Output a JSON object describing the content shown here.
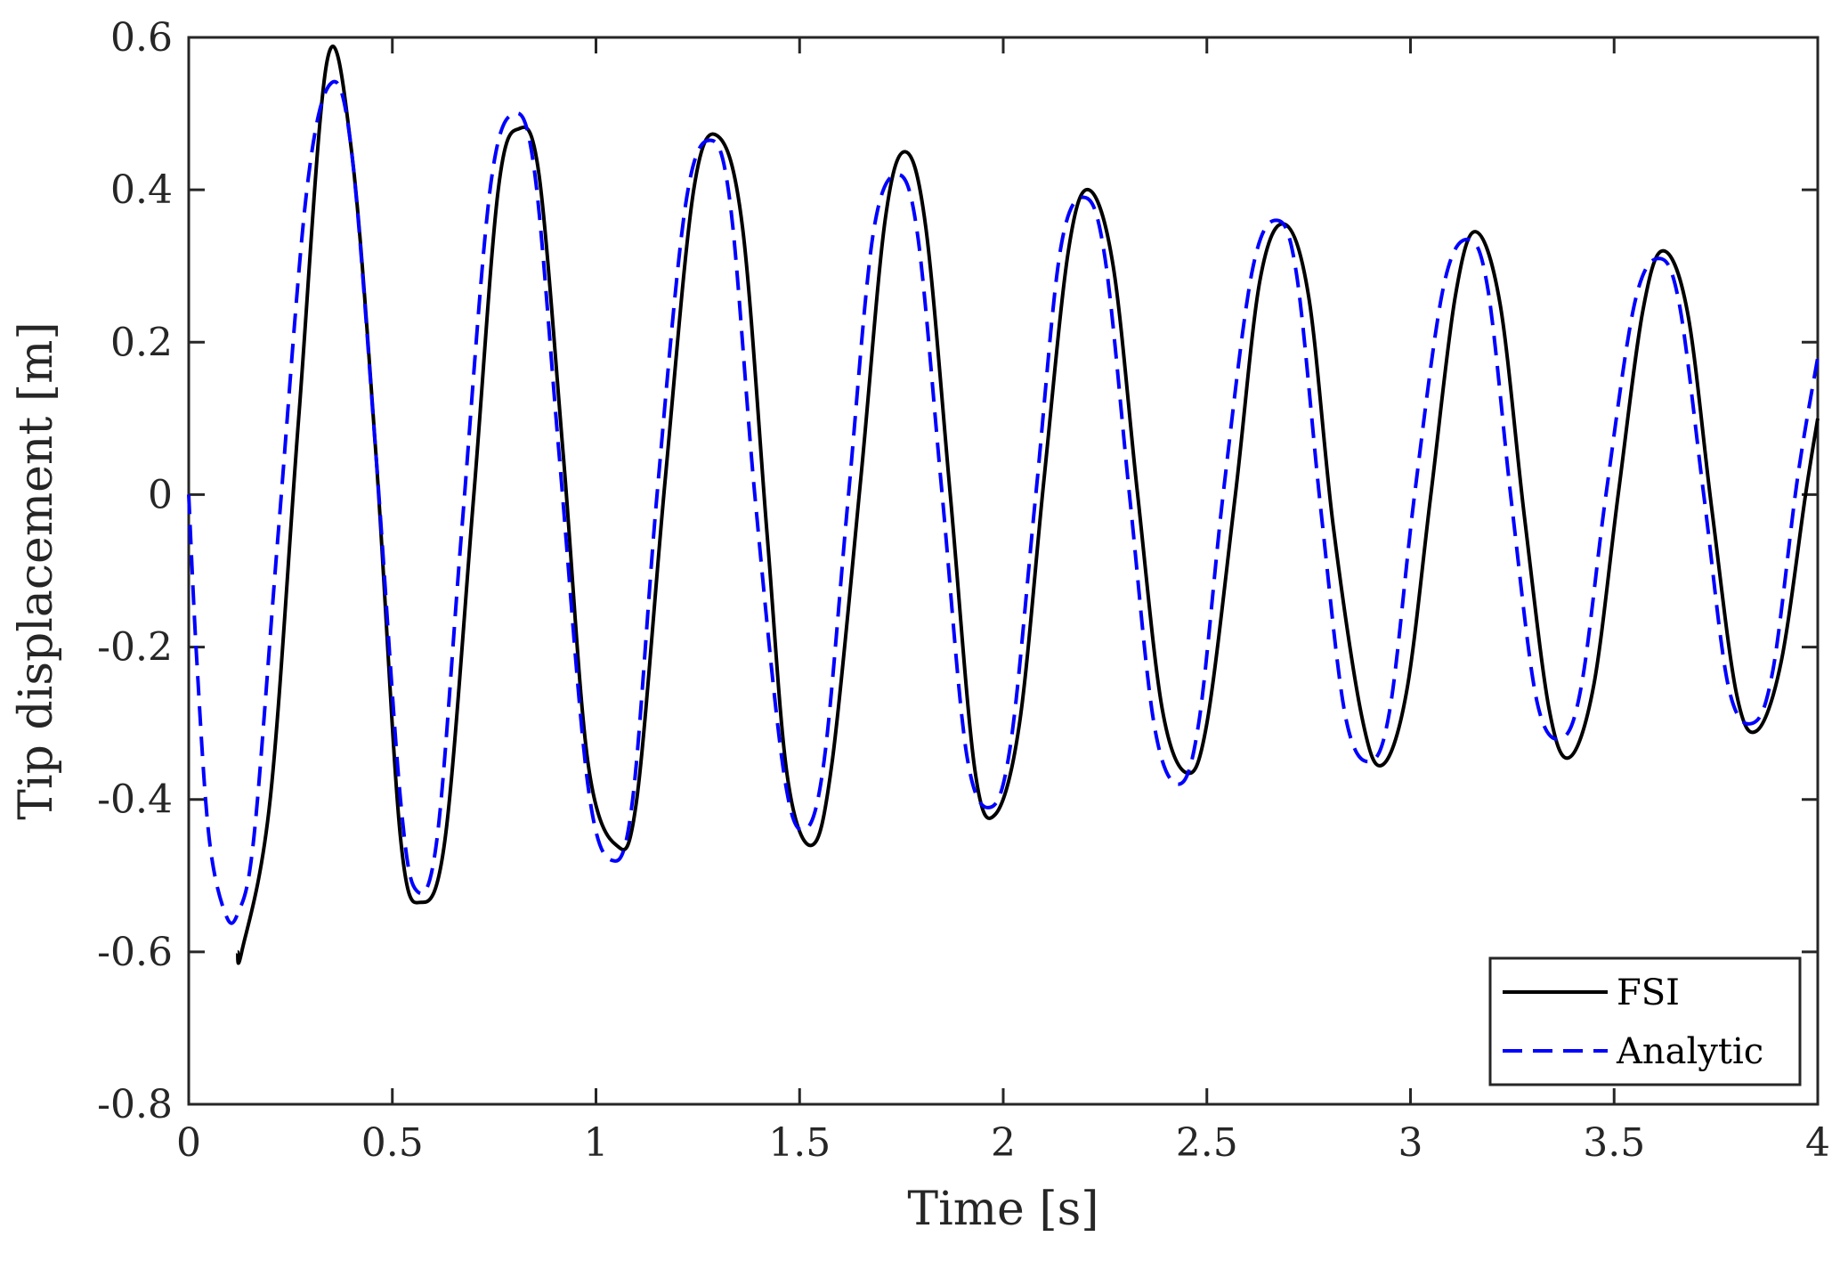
{
  "chart_data": {
    "type": "line",
    "title": "",
    "xlabel": "Time [s]",
    "ylabel": "Tip displacement [m]",
    "xlim": [
      0,
      4
    ],
    "ylim": [
      -0.8,
      0.6
    ],
    "xticks": [
      0,
      0.5,
      1,
      1.5,
      2,
      2.5,
      3,
      3.5,
      4
    ],
    "xtick_labels": [
      "0",
      "0.5",
      "1",
      "1.5",
      "2",
      "2.5",
      "3",
      "3.5",
      "4"
    ],
    "yticks": [
      -0.8,
      -0.6,
      -0.4,
      -0.2,
      0,
      0.2,
      0.4,
      0.6
    ],
    "ytick_labels": [
      "-0.8",
      "-0.6",
      "-0.4",
      "-0.2",
      "0",
      "0.2",
      "0.4",
      "0.6"
    ],
    "grid": false,
    "legend_position": "bottom-right",
    "series": [
      {
        "name": "FSI",
        "color": "#000000",
        "style": "solid",
        "points": [
          [
            0.12,
            -0.6
          ],
          [
            0.13,
            -0.6
          ],
          [
            0.2,
            -0.4
          ],
          [
            0.27,
            0.1
          ],
          [
            0.34,
            0.57
          ],
          [
            0.4,
            0.45
          ],
          [
            0.46,
            0.05
          ],
          [
            0.52,
            -0.45
          ],
          [
            0.57,
            -0.535
          ],
          [
            0.63,
            -0.45
          ],
          [
            0.7,
            0.0
          ],
          [
            0.76,
            0.4
          ],
          [
            0.81,
            0.48
          ],
          [
            0.86,
            0.42
          ],
          [
            0.92,
            0.05
          ],
          [
            0.98,
            -0.35
          ],
          [
            1.05,
            -0.46
          ],
          [
            1.1,
            -0.4
          ],
          [
            1.17,
            0.02
          ],
          [
            1.24,
            0.4
          ],
          [
            1.3,
            0.47
          ],
          [
            1.36,
            0.35
          ],
          [
            1.42,
            -0.05
          ],
          [
            1.47,
            -0.37
          ],
          [
            1.53,
            -0.46
          ],
          [
            1.58,
            -0.35
          ],
          [
            1.65,
            0.02
          ],
          [
            1.71,
            0.36
          ],
          [
            1.76,
            0.45
          ],
          [
            1.81,
            0.35
          ],
          [
            1.87,
            0.0
          ],
          [
            1.93,
            -0.36
          ],
          [
            1.98,
            -0.42
          ],
          [
            2.04,
            -0.3
          ],
          [
            2.1,
            0.02
          ],
          [
            2.16,
            0.32
          ],
          [
            2.21,
            0.4
          ],
          [
            2.27,
            0.3
          ],
          [
            2.33,
            0.0
          ],
          [
            2.39,
            -0.28
          ],
          [
            2.45,
            -0.365
          ],
          [
            2.5,
            -0.3
          ],
          [
            2.57,
            0.0
          ],
          [
            2.63,
            0.28
          ],
          [
            2.69,
            0.355
          ],
          [
            2.75,
            0.26
          ],
          [
            2.81,
            -0.04
          ],
          [
            2.88,
            -0.29
          ],
          [
            2.93,
            -0.355
          ],
          [
            2.99,
            -0.26
          ],
          [
            3.05,
            0.0
          ],
          [
            3.11,
            0.26
          ],
          [
            3.16,
            0.345
          ],
          [
            3.22,
            0.25
          ],
          [
            3.28,
            -0.03
          ],
          [
            3.34,
            -0.28
          ],
          [
            3.39,
            -0.345
          ],
          [
            3.45,
            -0.25
          ],
          [
            3.51,
            0.0
          ],
          [
            3.57,
            0.24
          ],
          [
            3.62,
            0.32
          ],
          [
            3.68,
            0.24
          ],
          [
            3.74,
            -0.02
          ],
          [
            3.8,
            -0.26
          ],
          [
            3.85,
            -0.31
          ],
          [
            3.91,
            -0.22
          ],
          [
            3.97,
            0.0
          ],
          [
            4.0,
            0.1
          ]
        ]
      },
      {
        "name": "Analytic",
        "color": "#0000ff",
        "style": "dashed",
        "points": [
          [
            0.0,
            0.0
          ],
          [
            0.02,
            -0.22
          ],
          [
            0.05,
            -0.45
          ],
          [
            0.09,
            -0.55
          ],
          [
            0.12,
            -0.55
          ],
          [
            0.16,
            -0.45
          ],
          [
            0.22,
            -0.05
          ],
          [
            0.29,
            0.4
          ],
          [
            0.35,
            0.54
          ],
          [
            0.4,
            0.45
          ],
          [
            0.46,
            0.05
          ],
          [
            0.52,
            -0.4
          ],
          [
            0.56,
            -0.52
          ],
          [
            0.61,
            -0.45
          ],
          [
            0.67,
            -0.05
          ],
          [
            0.74,
            0.4
          ],
          [
            0.8,
            0.5
          ],
          [
            0.85,
            0.42
          ],
          [
            0.91,
            0.05
          ],
          [
            0.98,
            -0.38
          ],
          [
            1.04,
            -0.48
          ],
          [
            1.09,
            -0.4
          ],
          [
            1.15,
            0.0
          ],
          [
            1.22,
            0.38
          ],
          [
            1.28,
            0.465
          ],
          [
            1.33,
            0.38
          ],
          [
            1.39,
            0.0
          ],
          [
            1.46,
            -0.36
          ],
          [
            1.51,
            -0.44
          ],
          [
            1.56,
            -0.35
          ],
          [
            1.62,
            0.0
          ],
          [
            1.68,
            0.34
          ],
          [
            1.74,
            0.42
          ],
          [
            1.79,
            0.34
          ],
          [
            1.85,
            0.0
          ],
          [
            1.91,
            -0.34
          ],
          [
            1.97,
            -0.41
          ],
          [
            2.02,
            -0.32
          ],
          [
            2.08,
            0.0
          ],
          [
            2.14,
            0.32
          ],
          [
            2.2,
            0.39
          ],
          [
            2.25,
            0.31
          ],
          [
            2.31,
            0.0
          ],
          [
            2.37,
            -0.3
          ],
          [
            2.43,
            -0.38
          ],
          [
            2.48,
            -0.3
          ],
          [
            2.54,
            0.0
          ],
          [
            2.61,
            0.29
          ],
          [
            2.67,
            0.36
          ],
          [
            2.72,
            0.29
          ],
          [
            2.78,
            -0.02
          ],
          [
            2.84,
            -0.29
          ],
          [
            2.9,
            -0.35
          ],
          [
            2.95,
            -0.28
          ],
          [
            3.01,
            0.0
          ],
          [
            3.08,
            0.27
          ],
          [
            3.14,
            0.335
          ],
          [
            3.19,
            0.27
          ],
          [
            3.25,
            -0.02
          ],
          [
            3.31,
            -0.27
          ],
          [
            3.37,
            -0.32
          ],
          [
            3.42,
            -0.25
          ],
          [
            3.48,
            0.0
          ],
          [
            3.55,
            0.25
          ],
          [
            3.61,
            0.31
          ],
          [
            3.66,
            0.25
          ],
          [
            3.72,
            0.0
          ],
          [
            3.78,
            -0.25
          ],
          [
            3.84,
            -0.3
          ],
          [
            3.89,
            -0.23
          ],
          [
            3.95,
            0.02
          ],
          [
            4.0,
            0.18
          ]
        ]
      }
    ]
  }
}
